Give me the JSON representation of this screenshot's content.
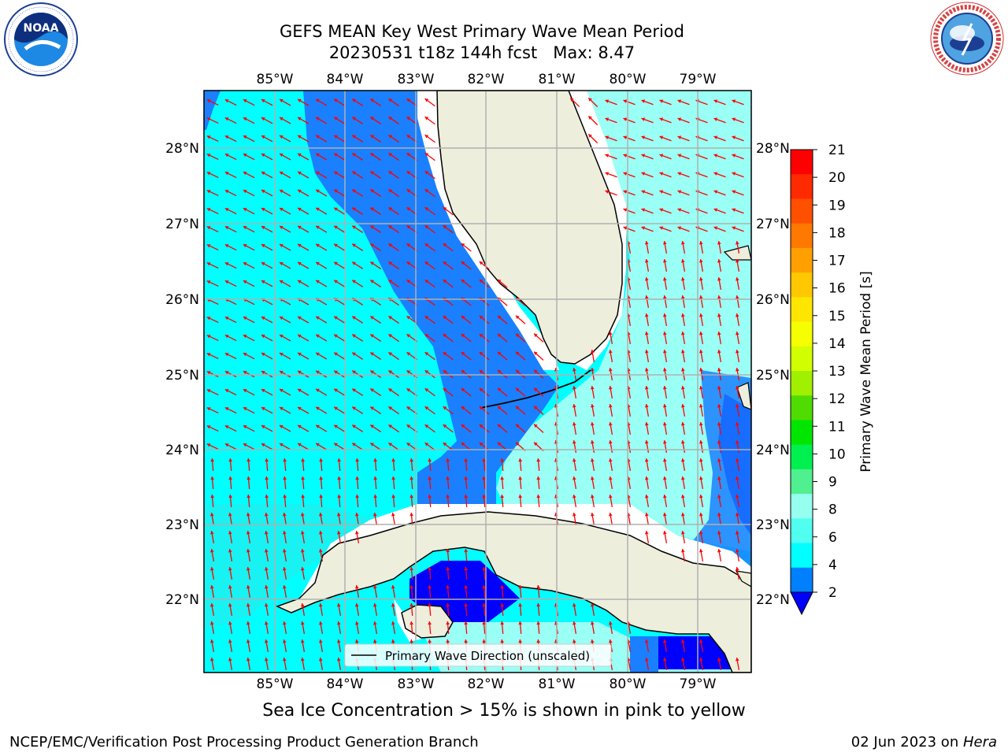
{
  "title": {
    "line1": "GEFS MEAN Key West Primary Wave Mean Period",
    "line2": "20230531 t18z 144h fcst   Max: 8.47"
  },
  "map": {
    "lon_labels": [
      "85°W",
      "84°W",
      "83°W",
      "82°W",
      "81°W",
      "80°W",
      "79°W"
    ],
    "lat_labels": [
      "28°N",
      "27°N",
      "26°N",
      "25°N",
      "24°N",
      "23°N",
      "22°N"
    ],
    "legend_label": "Primary Wave Direction (unscaled)",
    "arrow_color": "#ff0000",
    "land_color": "#eeeedd"
  },
  "colorbar": {
    "label": "Primary Wave Mean Period [s]",
    "ticks": [
      "21",
      "20",
      "19",
      "18",
      "17",
      "16",
      "15",
      "14",
      "13",
      "12",
      "11",
      "10",
      "9",
      "8",
      "6",
      "4",
      "2"
    ],
    "colors_top_to_bottom": [
      "#ff0000",
      "#ff2a00",
      "#ff5000",
      "#ff7800",
      "#ffa000",
      "#ffc800",
      "#ffe600",
      "#f5ff00",
      "#d2ff00",
      "#a0f000",
      "#50dc00",
      "#00e600",
      "#00f050",
      "#50f090",
      "#96fff0",
      "#50fff0",
      "#00ffff",
      "#0080ff",
      "#0000ff"
    ]
  },
  "subcaption": "Sea Ice Concentration > 15% is shown in pink to yellow",
  "footer": {
    "left": "NCEP/EMC/Verification Post Processing Product Generation Branch",
    "right_prefix": "02 Jun 2023 on ",
    "right_host": "Hera"
  },
  "logos": {
    "noaa": "NOAA",
    "nws": "NATIONAL WEATHER SERVICE"
  }
}
